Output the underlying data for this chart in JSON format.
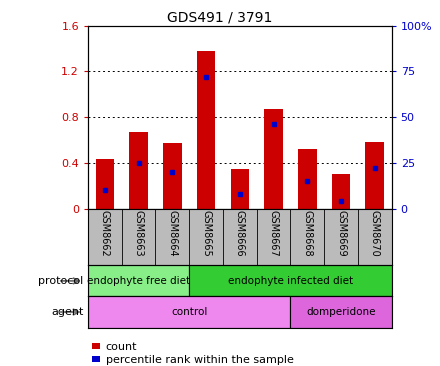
{
  "title": "GDS491 / 3791",
  "samples": [
    "GSM8662",
    "GSM8663",
    "GSM8664",
    "GSM8665",
    "GSM8666",
    "GSM8667",
    "GSM8668",
    "GSM8669",
    "GSM8670"
  ],
  "counts": [
    0.43,
    0.67,
    0.57,
    1.38,
    0.35,
    0.87,
    0.52,
    0.3,
    0.58
  ],
  "percentiles": [
    10,
    25,
    20,
    72,
    8,
    46,
    15,
    4,
    22
  ],
  "ylim_left": [
    0,
    1.6
  ],
  "ylim_right": [
    0,
    100
  ],
  "yticks_left": [
    0,
    0.4,
    0.8,
    1.2,
    1.6
  ],
  "yticks_right": [
    0,
    25,
    50,
    75,
    100
  ],
  "ytick_labels_left": [
    "0",
    "0.4",
    "0.8",
    "1.2",
    "1.6"
  ],
  "ytick_labels_right": [
    "0",
    "25",
    "50",
    "75",
    "100%"
  ],
  "bar_color": "#cc0000",
  "marker_color": "#0000cc",
  "protocol_groups": [
    {
      "label": "endophyte free diet",
      "start": 0,
      "end": 3,
      "color": "#88ee88"
    },
    {
      "label": "endophyte infected diet",
      "start": 3,
      "end": 9,
      "color": "#33cc33"
    }
  ],
  "agent_groups": [
    {
      "label": "control",
      "start": 0,
      "end": 6,
      "color": "#ee88ee"
    },
    {
      "label": "domperidone",
      "start": 6,
      "end": 9,
      "color": "#dd66dd"
    }
  ],
  "protocol_label": "protocol",
  "agent_label": "agent",
  "legend_count_label": "count",
  "legend_percentile_label": "percentile rank within the sample",
  "tick_area_bg": "#bbbbbb",
  "spine_color": "#000000",
  "fig_width": 4.4,
  "fig_height": 3.66,
  "dpi": 100
}
